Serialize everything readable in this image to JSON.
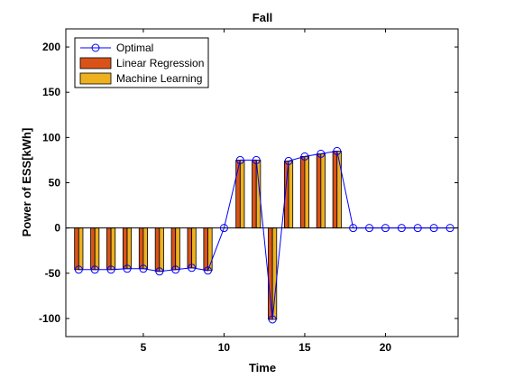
{
  "chart_data": {
    "type": "bar",
    "title": "Fall",
    "xlabel": "Time",
    "ylabel": "Power of ESS[kWh]",
    "xlim": [
      0.2,
      24.5
    ],
    "ylim": [
      -120,
      220
    ],
    "xticks": [
      5,
      10,
      15,
      20
    ],
    "yticks": [
      -100,
      -50,
      0,
      50,
      100,
      150,
      200
    ],
    "grid": false,
    "legend_position": "top-left",
    "x": [
      1,
      2,
      3,
      4,
      5,
      6,
      7,
      8,
      9,
      10,
      11,
      12,
      13,
      14,
      15,
      16,
      17,
      18,
      19,
      20,
      21,
      22,
      23,
      24
    ],
    "series": [
      {
        "name": "Optimal",
        "kind": "line-marker",
        "color": "#0000ff",
        "values": [
          -46,
          -46,
          -46,
          -45,
          -45,
          -48,
          -46,
          -44,
          -47,
          0,
          75,
          75,
          -101,
          74,
          79,
          82,
          85,
          0,
          0,
          0,
          0,
          0,
          0,
          0
        ]
      },
      {
        "name": "Linear Regression",
        "kind": "bar",
        "color": "#d95319",
        "values": [
          -46,
          -46,
          -46,
          -45,
          -45,
          -48,
          -46,
          -44,
          -47,
          0,
          75,
          75,
          -101,
          74,
          79,
          82,
          85,
          0,
          0,
          0,
          0,
          0,
          0,
          0
        ]
      },
      {
        "name": "Machine Learning",
        "kind": "bar",
        "color": "#edb120",
        "values": [
          -46,
          -46,
          -46,
          -45,
          -45,
          -48,
          -46,
          -44,
          -47,
          0,
          75,
          75,
          -101,
          74,
          79,
          82,
          85,
          0,
          0,
          0,
          0,
          0,
          0,
          0
        ]
      }
    ]
  }
}
